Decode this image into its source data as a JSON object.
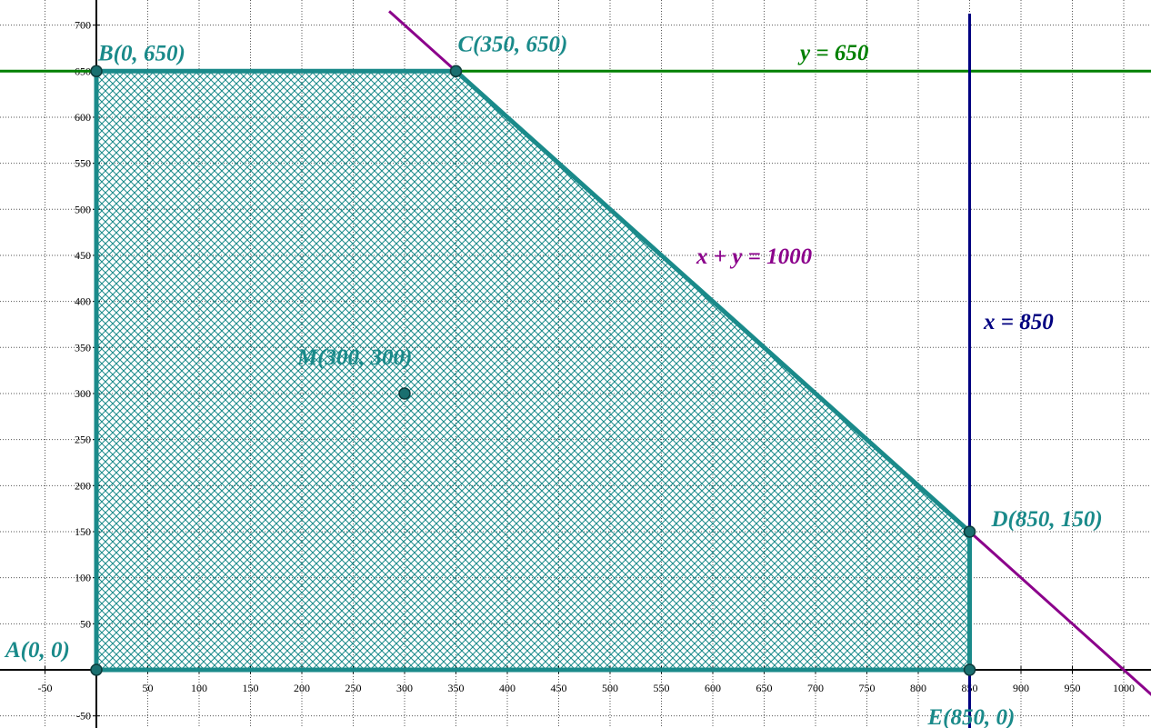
{
  "chart_data": {
    "type": "line",
    "xlim": [
      -85,
      1030
    ],
    "ylim": [
      -60,
      715
    ],
    "grid": true,
    "x_ticks": [
      -50,
      50,
      100,
      150,
      200,
      250,
      300,
      350,
      400,
      450,
      500,
      550,
      600,
      650,
      700,
      750,
      800,
      850,
      900,
      950,
      1000
    ],
    "y_ticks": [
      -50,
      50,
      100,
      150,
      200,
      250,
      300,
      350,
      400,
      450,
      500,
      550,
      600,
      650,
      700
    ],
    "lines": [
      {
        "equation": "y = 650",
        "kind": "horizontal",
        "value": 650,
        "color": "#008000"
      },
      {
        "equation": "x = 850",
        "kind": "vertical",
        "value": 850,
        "color": "#000080"
      },
      {
        "equation": "x + y = 1000",
        "kind": "sum",
        "value": 1000,
        "color": "#8b008b"
      }
    ],
    "polygon": {
      "vertices": [
        [
          0,
          0
        ],
        [
          0,
          650
        ],
        [
          350,
          650
        ],
        [
          850,
          150
        ],
        [
          850,
          0
        ]
      ],
      "fill_color": "#1a8a8a",
      "edge_color": "#1a8a8a"
    },
    "points": [
      {
        "label": "A(0, 0)",
        "x": 0,
        "y": 0
      },
      {
        "label": "B(0, 650)",
        "x": 0,
        "y": 650
      },
      {
        "label": "C(350, 650)",
        "x": 350,
        "y": 650
      },
      {
        "label": "D(850, 150)",
        "x": 850,
        "y": 150
      },
      {
        "label": "E(850, 0)",
        "x": 850,
        "y": 0
      },
      {
        "label": "M(300, 300)",
        "x": 300,
        "y": 300
      }
    ]
  }
}
